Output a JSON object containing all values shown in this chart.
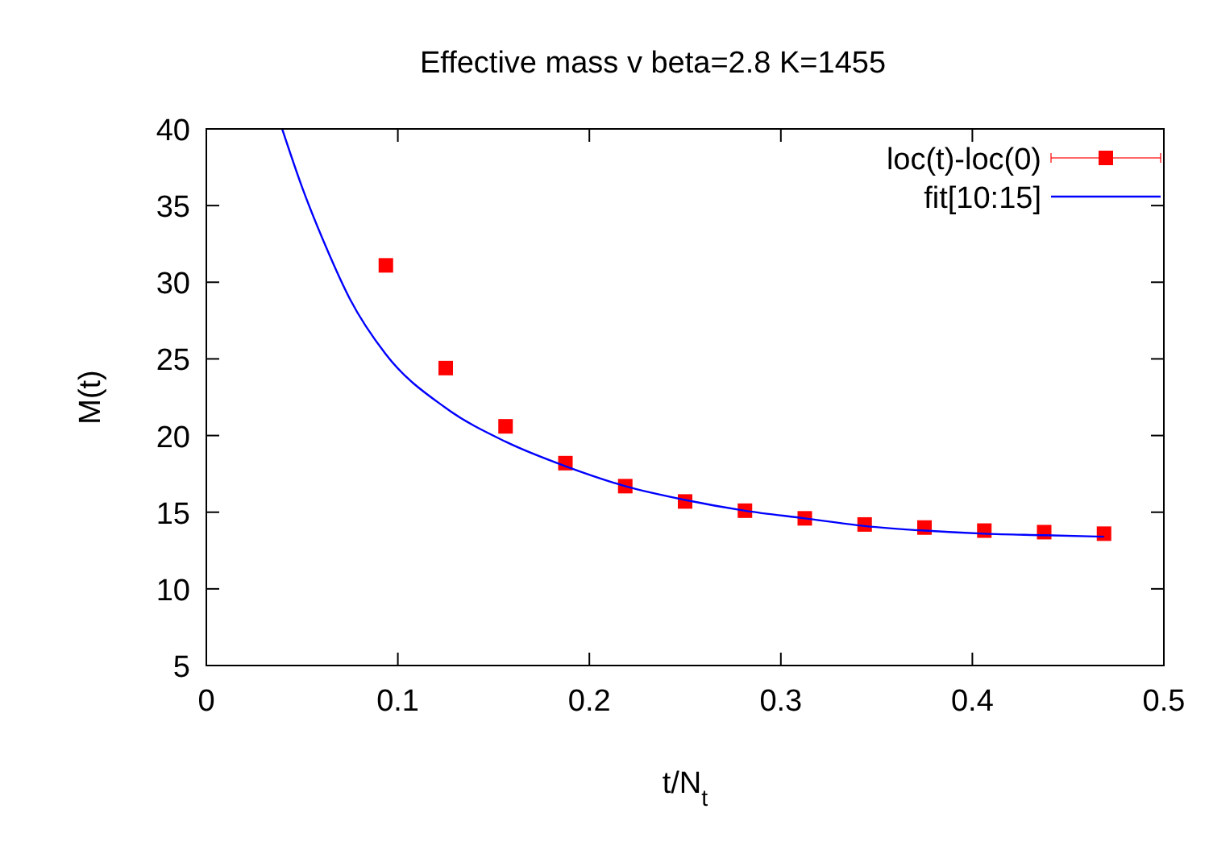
{
  "chart_data": {
    "type": "scatter",
    "title": "Effective mass v beta=2.8 K=1455",
    "xlabel": "t/N$_{t}$",
    "ylabel": "M(t)",
    "xlim": [
      0,
      0.5
    ],
    "xticks": [
      0,
      0.1,
      0.2,
      0.3,
      0.4,
      0.5
    ],
    "ylim": [
      5,
      40
    ],
    "yticks": [
      5,
      10,
      15,
      20,
      25,
      30,
      35,
      40
    ],
    "grid": false,
    "legend": "top right",
    "series": [
      {
        "name": "loc(t)-loc(0)",
        "marker": "square",
        "color": "#ff0000",
        "x": [
          0.09375,
          0.125,
          0.15625,
          0.1875,
          0.21875,
          0.25,
          0.28125,
          0.3125,
          0.34375,
          0.375,
          0.40625,
          0.4375,
          0.46875
        ],
        "values": [
          31.1,
          24.4,
          20.6,
          18.2,
          16.7,
          15.7,
          15.1,
          14.6,
          14.2,
          14.0,
          13.8,
          13.7,
          13.6
        ]
      },
      {
        "name": "fit[10:15]",
        "type": "line",
        "marker": "none",
        "line_style": "solid",
        "color": "#0000ff",
        "x": [
          0.0396,
          0.05,
          0.0625,
          0.075,
          0.09375,
          0.125,
          0.15625,
          0.1875,
          0.21875,
          0.25,
          0.28125,
          0.3125,
          0.34375,
          0.375,
          0.40625,
          0.4375,
          0.46875
        ],
        "values": [
          40,
          36.2,
          32.3,
          28.9,
          25.3,
          21.8,
          19.6,
          18.0,
          16.7,
          15.8,
          15.1,
          14.6,
          14.1,
          13.8,
          13.6,
          13.5,
          13.4
        ]
      }
    ]
  }
}
